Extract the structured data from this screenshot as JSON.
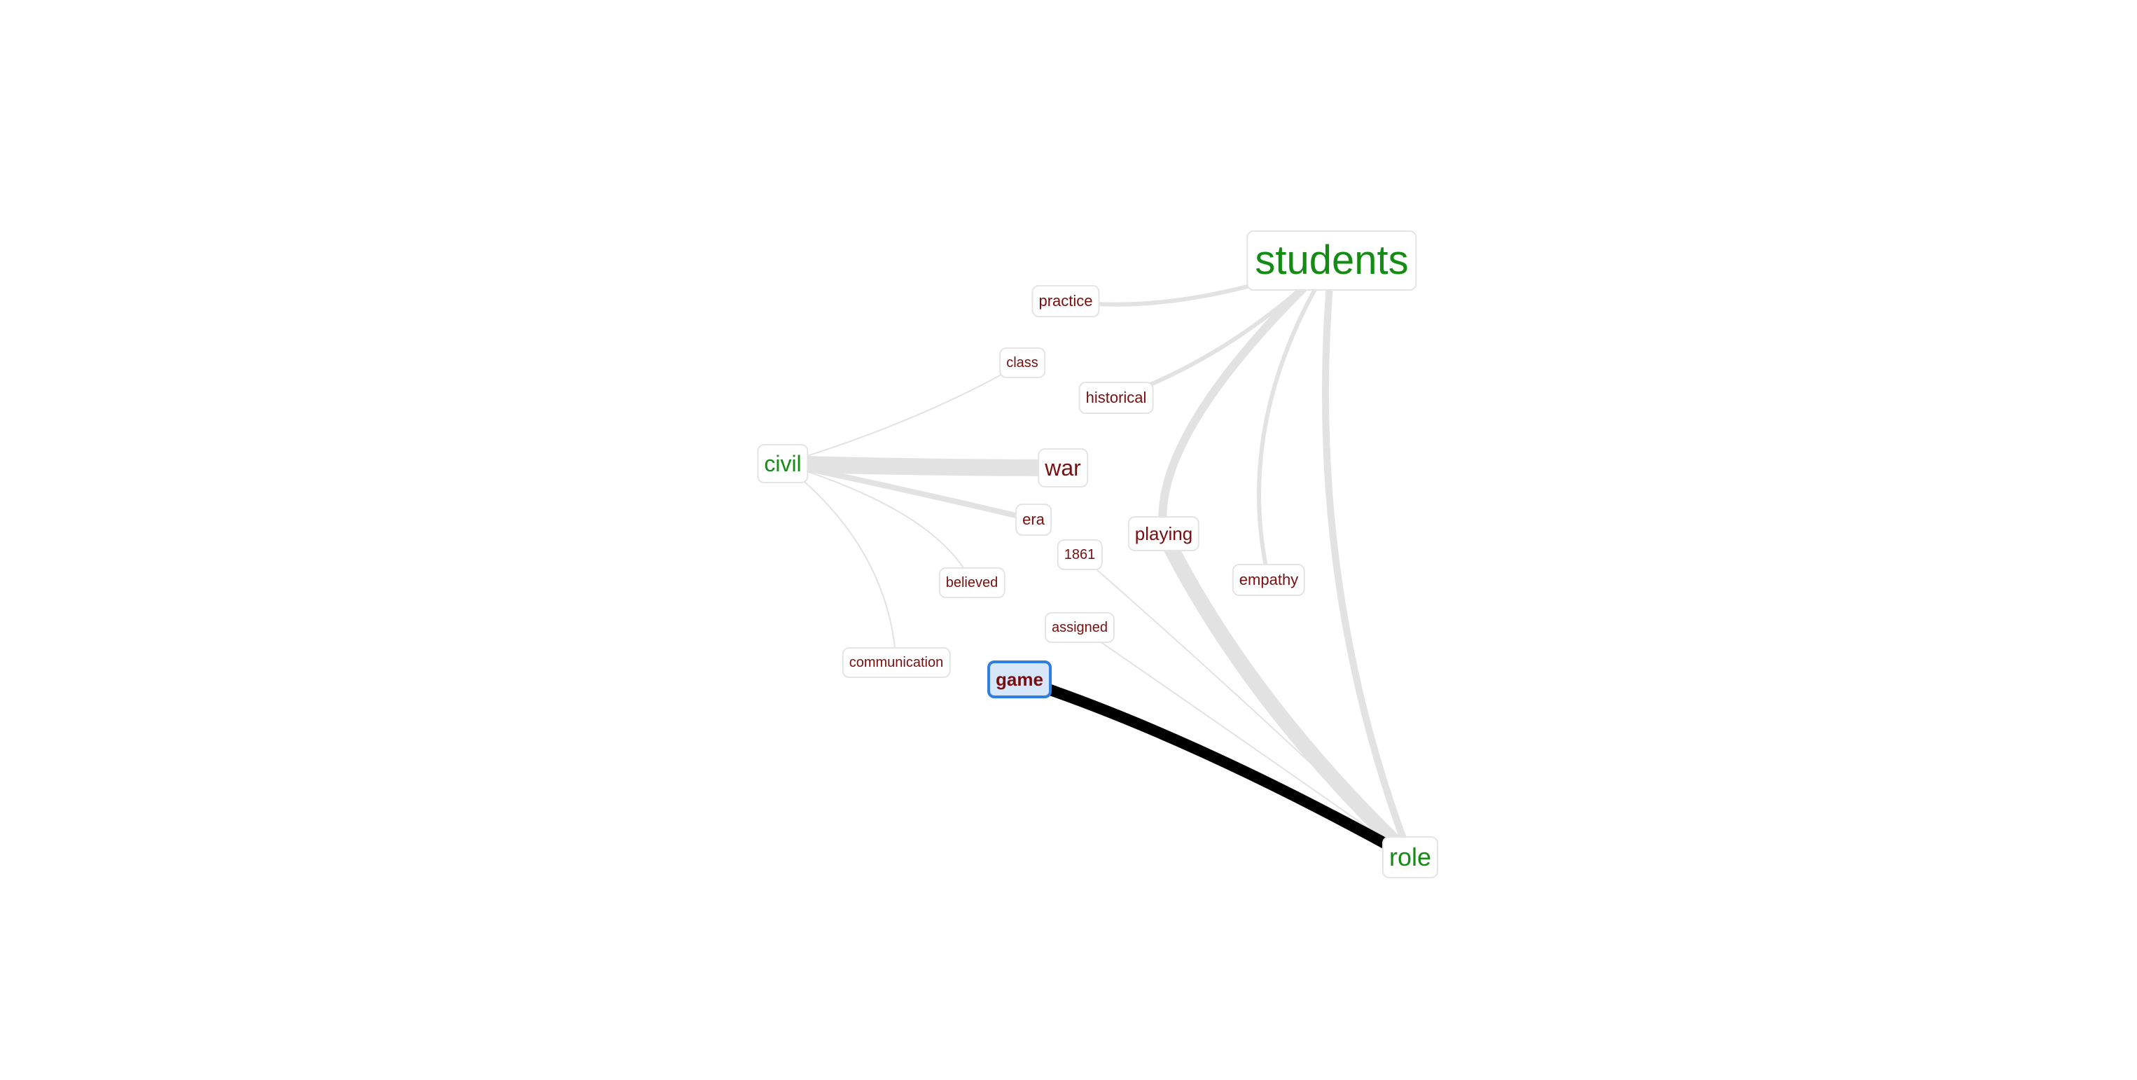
{
  "graph": {
    "nodes": [
      {
        "id": "students",
        "label": "students",
        "kind": "hub"
      },
      {
        "id": "practice",
        "label": "practice",
        "kind": "leaf"
      },
      {
        "id": "class",
        "label": "class",
        "kind": "leaf"
      },
      {
        "id": "historical",
        "label": "historical",
        "kind": "leaf"
      },
      {
        "id": "civil",
        "label": "civil",
        "kind": "hub"
      },
      {
        "id": "war",
        "label": "war",
        "kind": "leaf"
      },
      {
        "id": "era",
        "label": "era",
        "kind": "leaf"
      },
      {
        "id": "playing",
        "label": "playing",
        "kind": "leaf"
      },
      {
        "id": "1861",
        "label": "1861",
        "kind": "leaf"
      },
      {
        "id": "empathy",
        "label": "empathy",
        "kind": "leaf"
      },
      {
        "id": "believed",
        "label": "believed",
        "kind": "leaf"
      },
      {
        "id": "assigned",
        "label": "assigned",
        "kind": "leaf"
      },
      {
        "id": "communication",
        "label": "communication",
        "kind": "leaf"
      },
      {
        "id": "game",
        "label": "game",
        "kind": "leaf",
        "selected": true
      },
      {
        "id": "role",
        "label": "role",
        "kind": "hub"
      }
    ],
    "edges": [
      {
        "source": "students",
        "target": "practice",
        "weight": 3
      },
      {
        "source": "students",
        "target": "historical",
        "weight": 3
      },
      {
        "source": "students",
        "target": "playing",
        "weight": 6
      },
      {
        "source": "students",
        "target": "empathy",
        "weight": 3
      },
      {
        "source": "students",
        "target": "role",
        "weight": 5
      },
      {
        "source": "civil",
        "target": "war",
        "weight": 12
      },
      {
        "source": "civil",
        "target": "era",
        "weight": 4
      },
      {
        "source": "civil",
        "target": "class",
        "weight": 1
      },
      {
        "source": "civil",
        "target": "believed",
        "weight": 1
      },
      {
        "source": "civil",
        "target": "communication",
        "weight": 1
      },
      {
        "source": "playing",
        "target": "role",
        "weight": 11
      },
      {
        "source": "1861",
        "target": "role",
        "weight": 1
      },
      {
        "source": "assigned",
        "target": "role",
        "weight": 1
      },
      {
        "source": "game",
        "target": "role",
        "weight": 8,
        "highlighted": true
      }
    ]
  },
  "colors": {
    "hub_text": "#128c12",
    "leaf_text": "#7a0e0e",
    "edge": "#e2e2e2",
    "edge_highlight": "#000000",
    "selected_fill": "#d6e6fb",
    "selected_border": "#2f7fe0"
  }
}
